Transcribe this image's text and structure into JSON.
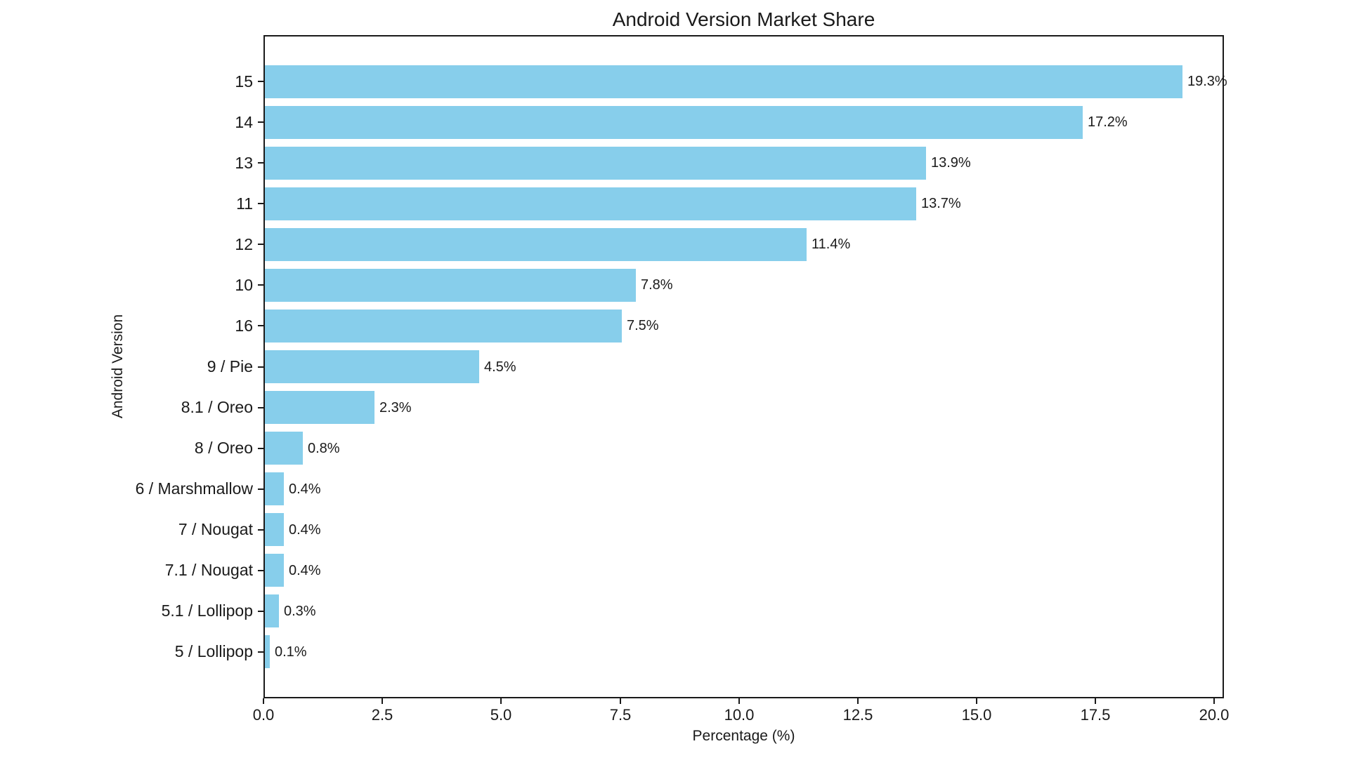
{
  "chart_data": {
    "type": "bar",
    "orientation": "horizontal",
    "title": "Android Version Market Share",
    "xlabel": "Percentage (%)",
    "ylabel": "Android Version",
    "categories": [
      "15",
      "14",
      "13",
      "11",
      "12",
      "10",
      "16",
      "9 / Pie",
      "8.1 / Oreo",
      "8 / Oreo",
      "6 / Marshmallow",
      "7 / Nougat",
      "7.1 / Nougat",
      "5.1 / Lollipop",
      "5 / Lollipop"
    ],
    "values": [
      19.3,
      17.2,
      13.9,
      13.7,
      11.4,
      7.8,
      7.5,
      4.5,
      2.3,
      0.8,
      0.4,
      0.4,
      0.4,
      0.3,
      0.1
    ],
    "value_labels": [
      "19.3%",
      "17.2%",
      "13.9%",
      "13.7%",
      "11.4%",
      "7.8%",
      "7.5%",
      "4.5%",
      "2.3%",
      "0.8%",
      "0.4%",
      "0.4%",
      "0.4%",
      "0.3%",
      "0.1%"
    ],
    "x_tick_values": [
      0.0,
      2.5,
      5.0,
      7.5,
      10.0,
      12.5,
      15.0,
      17.5,
      20.0
    ],
    "x_tick_labels": [
      "0.0",
      "2.5",
      "5.0",
      "7.5",
      "10.0",
      "12.5",
      "15.0",
      "17.5",
      "20.0"
    ],
    "xlim": [
      0,
      20.2
    ],
    "bar_color": "#87CEEB",
    "text_color": "#1a1a1a",
    "grid": false,
    "legend": null
  }
}
